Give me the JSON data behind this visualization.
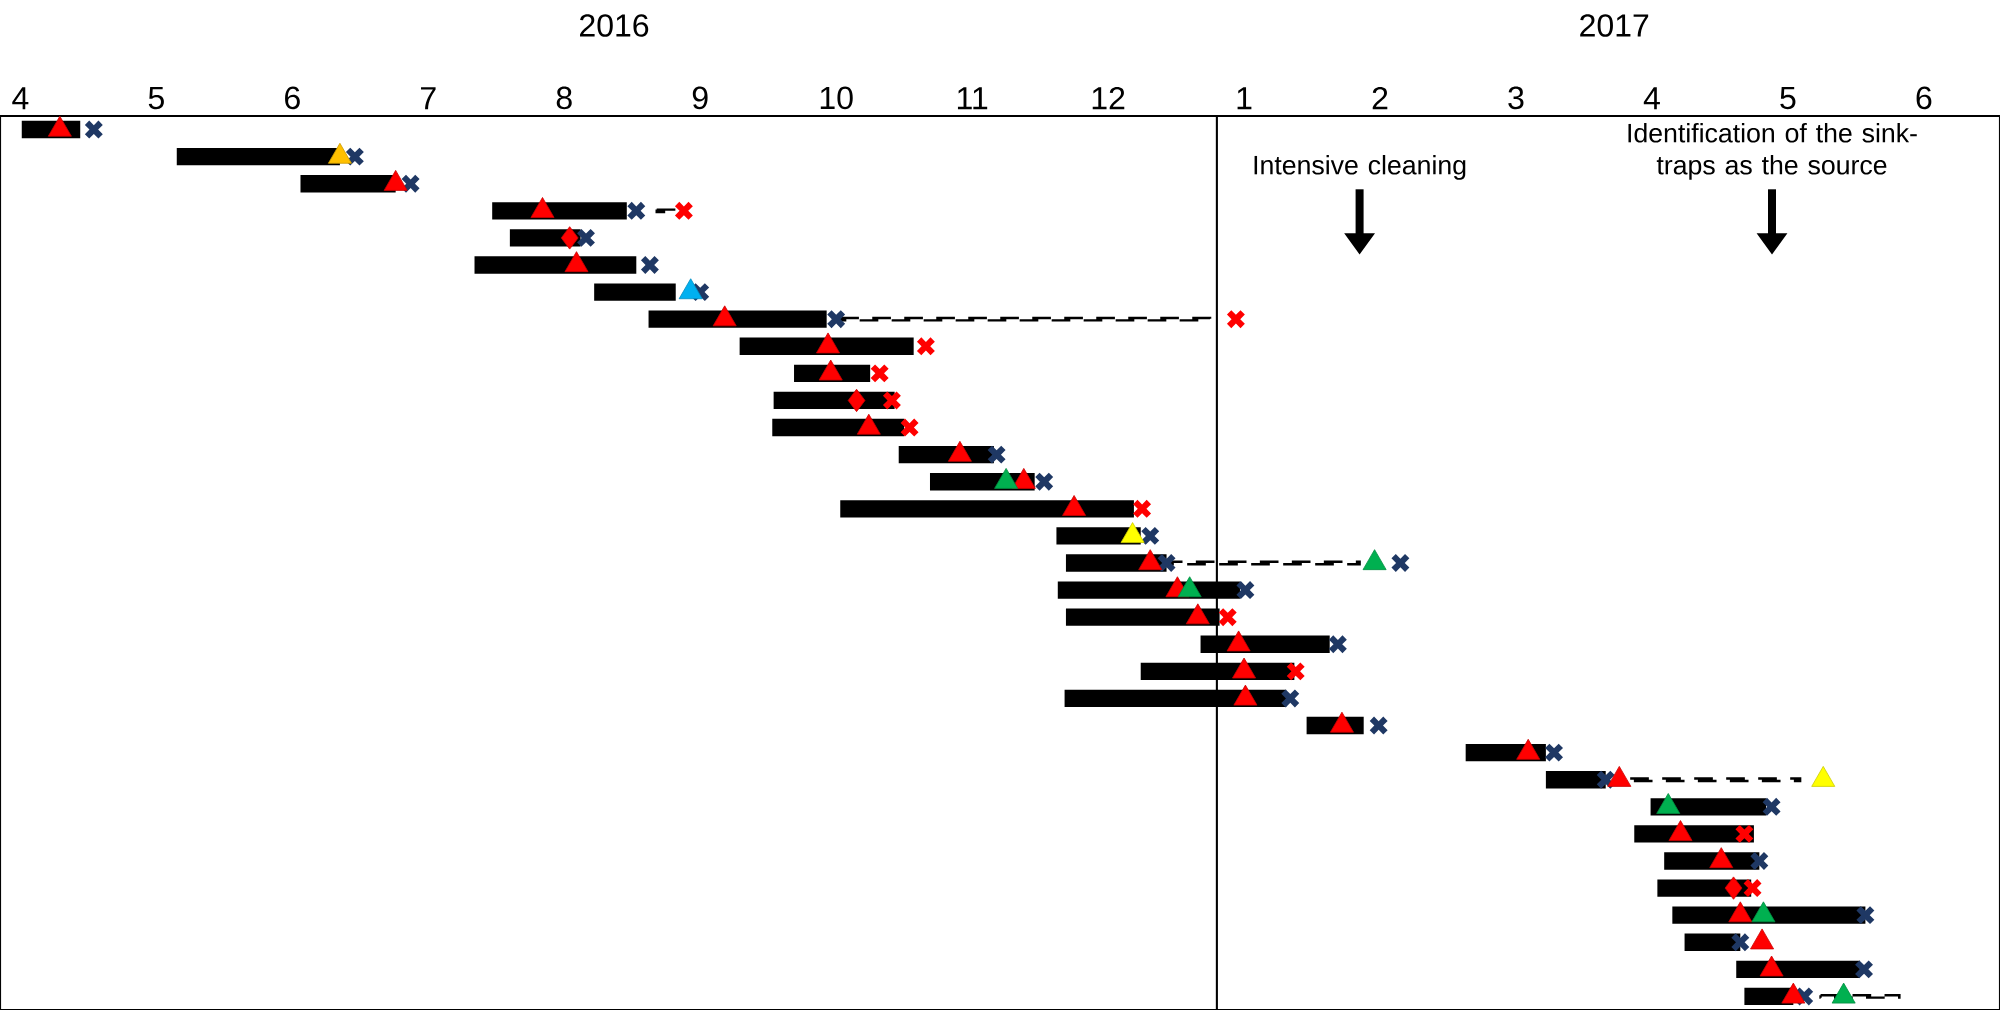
{
  "chart_data": {
    "type": "bar",
    "orientation": "horizontal",
    "categories": [
      null,
      null,
      null,
      null,
      null,
      null,
      null,
      null,
      null,
      null,
      null,
      null,
      null,
      null,
      null,
      null,
      null,
      null,
      null,
      null,
      null,
      null,
      null,
      null,
      null,
      null,
      null,
      null,
      null,
      null,
      null,
      null,
      null
    ],
    "xlim": [
      3.85,
      18.56
    ],
    "xticks": [
      4,
      5,
      6,
      7,
      8,
      9,
      10,
      11,
      12
    ],
    "x2lim": [
      -8.15,
      6.56
    ],
    "x2ticks": [
      1,
      2,
      3,
      4,
      5,
      6
    ],
    "tick_labels": "x",
    "ref_lines": [
      {
        "axis": "x",
        "value": 12.8,
        "color": "#000000"
      }
    ],
    "annotations": [
      "2016",
      "2017",
      "Intensive cleaning",
      "Identification of the sink-traps as the source"
    ],
    "series": [
      {
        "color": "#000000",
        "base": [
          4.01,
          5.15,
          6.06,
          7.47,
          7.6,
          7.34,
          8.22,
          8.62,
          9.29,
          9.69,
          9.54,
          9.53,
          10.46,
          10.69,
          10.03,
          11.62,
          11.69,
          11.63,
          11.69,
          12.68,
          12.24,
          11.68,
          13.46,
          14.63,
          15.22,
          15.99,
          15.87,
          16.09,
          16.04,
          16.15,
          16.24,
          16.62,
          16.68
        ],
        "values": [
          0.43,
          1.2,
          0.7,
          0.99,
          0.52,
          1.19,
          0.6,
          1.31,
          1.28,
          0.56,
          0.89,
          0.97,
          0.7,
          0.77,
          2.16,
          0.62,
          0.74,
          1.34,
          1.13,
          0.95,
          1.13,
          1.63,
          0.42,
          0.59,
          0.44,
          0.85,
          0.88,
          0.7,
          0.69,
          1.42,
          0.41,
          0.91,
          0.36
        ]
      },
      {
        "color": "#000000",
        "line_style": "dashed",
        "base": [
          null,
          null,
          null,
          8.68,
          null,
          null,
          null,
          10.03,
          null,
          null,
          null,
          null,
          null,
          null,
          null,
          null,
          12.41,
          null,
          null,
          null,
          null,
          null,
          null,
          null,
          15.84,
          null,
          null,
          null,
          null,
          null,
          null,
          null,
          17.24
        ],
        "values": [
          null,
          null,
          null,
          0.14,
          null,
          null,
          null,
          2.72,
          null,
          null,
          null,
          null,
          null,
          null,
          null,
          null,
          1.44,
          null,
          null,
          null,
          null,
          null,
          null,
          null,
          1.25,
          null,
          null,
          null,
          null,
          null,
          null,
          null,
          0.58
        ]
      },
      {
        "type": "scatter",
        "marker": "cross",
        "color": "#1f3864",
        "values": [
          4.54,
          6.46,
          6.87,
          8.53,
          8.16,
          8.63,
          9.0,
          10.0,
          null,
          null,
          null,
          null,
          11.18,
          11.53,
          null,
          12.31,
          12.43,
          13.01,
          null,
          13.69,
          null,
          13.34,
          13.99,
          15.28,
          15.66,
          16.88,
          null,
          16.79,
          null,
          17.57,
          16.65,
          17.56,
          17.12
        ]
      },
      {
        "type": "scatter",
        "marker": "cross",
        "color": "#1f3864",
        "values": [
          null,
          null,
          null,
          null,
          null,
          null,
          null,
          null,
          null,
          null,
          null,
          null,
          null,
          null,
          null,
          null,
          14.15,
          null,
          null,
          null,
          null,
          null,
          null,
          null,
          null,
          null,
          null,
          null,
          null,
          null,
          null,
          null,
          null
        ]
      },
      {
        "type": "scatter",
        "marker": "cross",
        "color": "#ff0000",
        "values": [
          null,
          null,
          null,
          8.88,
          null,
          null,
          null,
          12.94,
          10.66,
          10.32,
          10.41,
          10.54,
          null,
          null,
          12.25,
          null,
          null,
          null,
          12.88,
          null,
          13.38,
          null,
          null,
          null,
          null,
          null,
          16.68,
          null,
          16.74,
          null,
          null,
          null,
          null
        ]
      },
      {
        "type": "scatter",
        "marker": "triangle",
        "color": "#ff0000",
        "values": [
          4.29,
          null,
          6.76,
          7.84,
          null,
          8.09,
          null,
          9.18,
          9.94,
          9.96,
          null,
          10.24,
          10.91,
          11.38,
          11.75,
          null,
          12.31,
          12.51,
          12.66,
          12.96,
          13.0,
          13.01,
          13.72,
          15.09,
          15.76,
          null,
          16.21,
          16.51,
          null,
          16.65,
          16.81,
          16.88,
          17.04
        ]
      },
      {
        "type": "scatter",
        "marker": "triangle",
        "color": "#ffc000",
        "values": [
          null,
          6.35,
          null,
          null,
          null,
          null,
          null,
          null,
          null,
          null,
          null,
          null,
          null,
          null,
          null,
          null,
          null,
          null,
          null,
          null,
          null,
          null,
          null,
          null,
          null,
          null,
          null,
          null,
          null,
          null,
          null,
          null,
          null
        ]
      },
      {
        "type": "scatter",
        "marker": "triangle",
        "color": "#ffff00",
        "values": [
          null,
          null,
          null,
          null,
          null,
          null,
          null,
          null,
          null,
          null,
          null,
          null,
          null,
          null,
          null,
          12.18,
          null,
          null,
          null,
          null,
          null,
          null,
          null,
          null,
          17.26,
          null,
          null,
          null,
          null,
          null,
          null,
          null,
          null
        ]
      },
      {
        "type": "scatter",
        "marker": "triangle",
        "color": "#00b0f0",
        "values": [
          null,
          null,
          null,
          null,
          null,
          null,
          8.93,
          null,
          null,
          null,
          null,
          null,
          null,
          null,
          null,
          null,
          null,
          null,
          null,
          null,
          null,
          null,
          null,
          null,
          null,
          null,
          null,
          null,
          null,
          null,
          null,
          null,
          null
        ]
      },
      {
        "type": "scatter",
        "marker": "triangle",
        "color": "#00b050",
        "values": [
          null,
          null,
          null,
          null,
          null,
          null,
          null,
          null,
          null,
          null,
          null,
          null,
          null,
          11.25,
          null,
          null,
          13.96,
          12.6,
          null,
          null,
          null,
          null,
          null,
          null,
          null,
          16.12,
          null,
          null,
          null,
          16.82,
          null,
          null,
          17.41
        ]
      },
      {
        "type": "scatter",
        "marker": "diamond",
        "color": "#ff0000",
        "values": [
          null,
          null,
          null,
          null,
          8.04,
          null,
          null,
          null,
          null,
          null,
          10.15,
          null,
          null,
          null,
          null,
          null,
          null,
          null,
          null,
          null,
          null,
          null,
          null,
          null,
          null,
          null,
          null,
          null,
          16.6,
          null,
          null,
          null,
          null
        ]
      }
    ]
  }
}
